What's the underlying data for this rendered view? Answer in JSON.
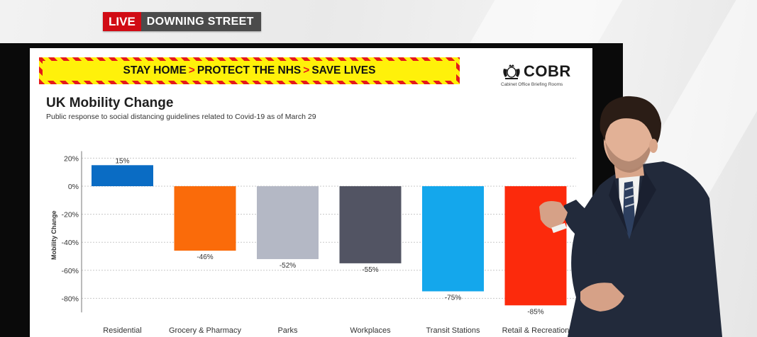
{
  "broadcast": {
    "live_label": "LIVE",
    "location": "DOWNING STREET",
    "live_color": "#d10b14"
  },
  "banner": {
    "segments": [
      "STAY HOME",
      "PROTECT THE NHS",
      "SAVE LIVES"
    ],
    "separator": ">",
    "colors": {
      "stripe": "#e41a1a",
      "fill": "#fff10a"
    }
  },
  "logo": {
    "name": "COBR",
    "subtitle": "Cabinet Office Briefing Rooms",
    "icon": "royal-crest-icon"
  },
  "chart_data": {
    "type": "bar",
    "title": "UK Mobility Change",
    "subtitle": "Public response to social distancing guidelines related to Covid-19 as of March 29",
    "ylabel": "Mobility Change",
    "xlabel": "",
    "ylim": [
      -90,
      25
    ],
    "yticks": [
      20,
      0,
      -20,
      -40,
      -60,
      -80
    ],
    "ytick_labels": [
      "20%",
      "0%",
      "-20%",
      "-40%",
      "-60%",
      "-80%"
    ],
    "grid": "horizontal dotted",
    "categories": [
      "Residential",
      "Grocery & Pharmacy",
      "Parks",
      "Workplaces",
      "Transit Stations",
      "Retail & Recreation"
    ],
    "values": [
      15,
      -46,
      -52,
      -55,
      -75,
      -85
    ],
    "value_labels": [
      "15%",
      "-46%",
      "-52%",
      "-55%",
      "-75%",
      "-85%"
    ],
    "colors": [
      "#0a6cc4",
      "#fa6b0a",
      "#b4b8c5",
      "#525463",
      "#14a7ec",
      "#fc2a0c"
    ]
  }
}
